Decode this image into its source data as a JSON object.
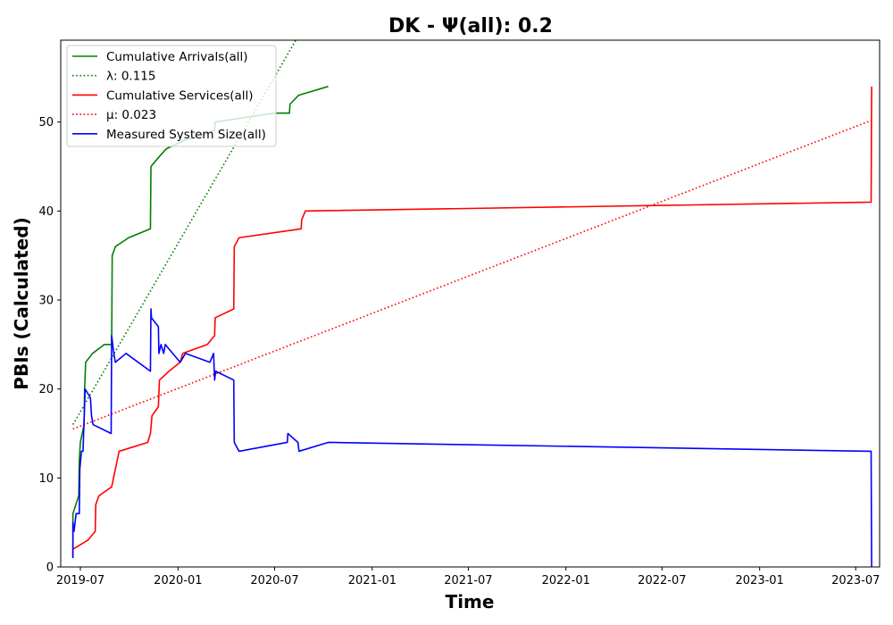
{
  "chart_data": {
    "type": "line",
    "title": "DK -  Ψ(all): 0.2",
    "xlabel": "Time",
    "ylabel": "PBIs (Calculated)",
    "xlim": [
      "2019-05-25",
      "2023-08-15"
    ],
    "ylim": [
      0,
      59.2
    ],
    "x_ticks": [
      "2019-07",
      "2020-01",
      "2020-07",
      "2021-01",
      "2021-07",
      "2022-01",
      "2022-07",
      "2023-01",
      "2023-07"
    ],
    "y_ticks": [
      0,
      10,
      20,
      30,
      40,
      50
    ],
    "grid": false,
    "legend_position": "upper-left",
    "series": [
      {
        "name": "Cumulative Arrivals(all)",
        "style": "solid",
        "color": "#008000",
        "points": [
          [
            "2019-06-17",
            1
          ],
          [
            "2019-06-17",
            6
          ],
          [
            "2019-06-28",
            8
          ],
          [
            "2019-06-29",
            12
          ],
          [
            "2019-07-01",
            14
          ],
          [
            "2019-07-08",
            16
          ],
          [
            "2019-07-09",
            20
          ],
          [
            "2019-07-11",
            23
          ],
          [
            "2019-07-24",
            24
          ],
          [
            "2019-08-15",
            25
          ],
          [
            "2019-08-29",
            25
          ],
          [
            "2019-08-30",
            35
          ],
          [
            "2019-09-05",
            36
          ],
          [
            "2019-09-30",
            37
          ],
          [
            "2019-11-10",
            38
          ],
          [
            "2019-11-11",
            45
          ],
          [
            "2019-11-25",
            46
          ],
          [
            "2019-12-10",
            47
          ],
          [
            "2020-01-15",
            48
          ],
          [
            "2020-03-10",
            49
          ],
          [
            "2020-03-11",
            50
          ],
          [
            "2020-07-01",
            51
          ],
          [
            "2020-07-29",
            51
          ],
          [
            "2020-07-30",
            52
          ],
          [
            "2020-08-15",
            53
          ],
          [
            "2020-10-10",
            54
          ]
        ]
      },
      {
        "name": "λ: 0.115",
        "style": "dotted",
        "color": "#008000",
        "points": [
          [
            "2019-06-17",
            16
          ],
          [
            "2020-08-10",
            59.2
          ]
        ]
      },
      {
        "name": "Cumulative Services(all)",
        "style": "solid",
        "color": "#ff0000",
        "points": [
          [
            "2019-06-17",
            1
          ],
          [
            "2019-06-17",
            2
          ],
          [
            "2019-07-15",
            3
          ],
          [
            "2019-07-29",
            4
          ],
          [
            "2019-07-30",
            7
          ],
          [
            "2019-08-05",
            8
          ],
          [
            "2019-08-29",
            9
          ],
          [
            "2019-09-05",
            11
          ],
          [
            "2019-09-12",
            13
          ],
          [
            "2019-11-05",
            14
          ],
          [
            "2019-11-10",
            15
          ],
          [
            "2019-11-13",
            17
          ],
          [
            "2019-11-25",
            18
          ],
          [
            "2019-11-27",
            21
          ],
          [
            "2019-12-15",
            22
          ],
          [
            "2020-01-05",
            23
          ],
          [
            "2020-01-10",
            24
          ],
          [
            "2020-02-25",
            25
          ],
          [
            "2020-03-10",
            26
          ],
          [
            "2020-03-11",
            28
          ],
          [
            "2020-04-15",
            29
          ],
          [
            "2020-04-16",
            36
          ],
          [
            "2020-04-25",
            37
          ],
          [
            "2020-08-20",
            38
          ],
          [
            "2020-08-21",
            39
          ],
          [
            "2020-08-28",
            40
          ],
          [
            "2023-07-30",
            41
          ],
          [
            "2023-07-31",
            54
          ]
        ]
      },
      {
        "name": "μ: 0.023",
        "style": "dotted",
        "color": "#ff0000",
        "points": [
          [
            "2019-06-17",
            15.5
          ],
          [
            "2023-07-31",
            50.2
          ]
        ]
      },
      {
        "name": "Measured System Size(all)",
        "style": "solid",
        "color": "#0000ff",
        "points": [
          [
            "2019-06-17",
            1
          ],
          [
            "2019-06-17",
            5
          ],
          [
            "2019-06-19",
            4
          ],
          [
            "2019-06-23",
            6
          ],
          [
            "2019-06-29",
            6
          ],
          [
            "2019-06-30",
            11
          ],
          [
            "2019-07-03",
            13
          ],
          [
            "2019-07-06",
            13
          ],
          [
            "2019-07-10",
            20
          ],
          [
            "2019-07-20",
            19
          ],
          [
            "2019-07-22",
            17
          ],
          [
            "2019-07-25",
            16
          ],
          [
            "2019-08-28",
            15
          ],
          [
            "2019-08-29",
            26
          ],
          [
            "2019-09-02",
            24
          ],
          [
            "2019-09-05",
            23
          ],
          [
            "2019-09-25",
            24
          ],
          [
            "2019-11-10",
            22
          ],
          [
            "2019-11-11",
            29
          ],
          [
            "2019-11-12",
            28
          ],
          [
            "2019-11-25",
            27
          ],
          [
            "2019-11-26",
            24
          ],
          [
            "2019-11-30",
            25
          ],
          [
            "2019-12-05",
            24
          ],
          [
            "2019-12-08",
            25
          ],
          [
            "2020-01-05",
            23
          ],
          [
            "2020-01-15",
            24
          ],
          [
            "2020-03-01",
            23
          ],
          [
            "2020-03-08",
            24
          ],
          [
            "2020-03-10",
            21
          ],
          [
            "2020-03-12",
            22
          ],
          [
            "2020-04-15",
            21
          ],
          [
            "2020-04-16",
            14
          ],
          [
            "2020-04-25",
            13
          ],
          [
            "2020-07-25",
            14
          ],
          [
            "2020-07-26",
            15
          ],
          [
            "2020-08-14",
            14
          ],
          [
            "2020-08-16",
            13
          ],
          [
            "2020-10-10",
            14
          ],
          [
            "2023-07-30",
            13
          ],
          [
            "2023-07-31",
            0
          ]
        ]
      }
    ]
  }
}
